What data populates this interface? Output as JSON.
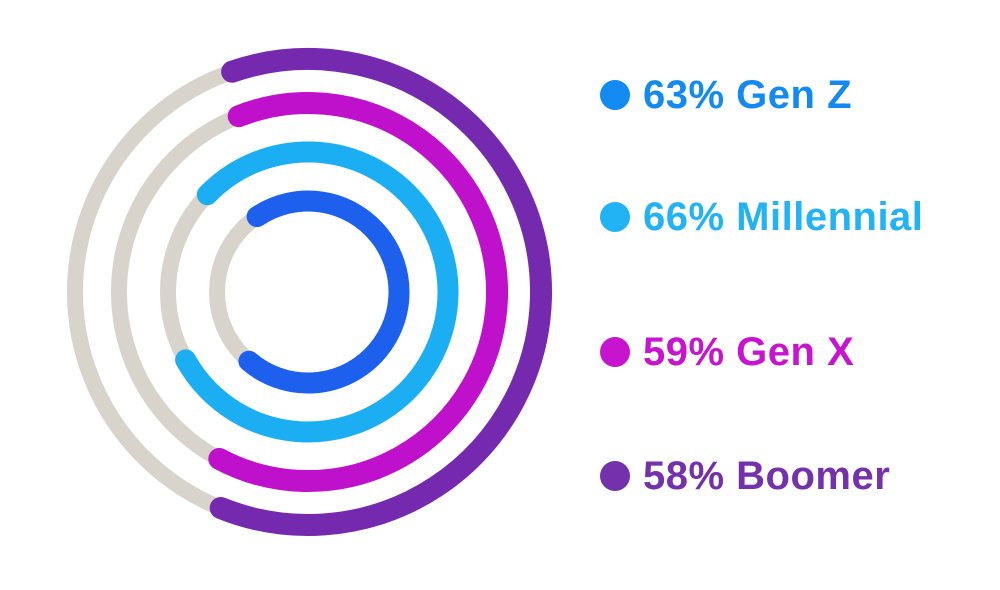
{
  "page": {
    "background": "#ffffff"
  },
  "chart_data": {
    "type": "radial_progress",
    "title": "",
    "unit": "%",
    "legend_position": "right",
    "track_color": "#d8d4cb",
    "series": [
      {
        "label": "Gen Z",
        "value": 63,
        "legend_text": "63% Gen Z",
        "legend_color": "#1389f2",
        "arc_color": "#1d60ee"
      },
      {
        "label": "Millennial",
        "value": 66,
        "legend_text": "66% Millennial",
        "legend_color": "#22b3f4",
        "arc_color": "#1caef3"
      },
      {
        "label": "Gen X",
        "value": 59,
        "legend_text": "59% Gen X",
        "legend_color": "#c813cf",
        "arc_color": "#bf10cb"
      },
      {
        "label": "Boomer",
        "value": 58,
        "legend_text": "58% Boomer",
        "legend_color": "#7431ab",
        "arc_color": "#7529ae"
      }
    ],
    "layout": {
      "center": {
        "x": 308,
        "y": 292
      },
      "track_stroke": 16,
      "rings": [
        {
          "series": "Gen Z",
          "radius": 91,
          "stroke": 21,
          "start_deg": -34,
          "end_deg": 220.5
        },
        {
          "series": "Millennial",
          "radius": 140,
          "stroke": 21,
          "start_deg": -46,
          "end_deg": 241
        },
        {
          "series": "Gen X",
          "radius": 189,
          "stroke": 22,
          "start_deg": -21.5,
          "end_deg": 208
        },
        {
          "series": "Boomer",
          "radius": 233,
          "stroke": 22,
          "start_deg": -19,
          "end_deg": 202
        }
      ]
    }
  }
}
